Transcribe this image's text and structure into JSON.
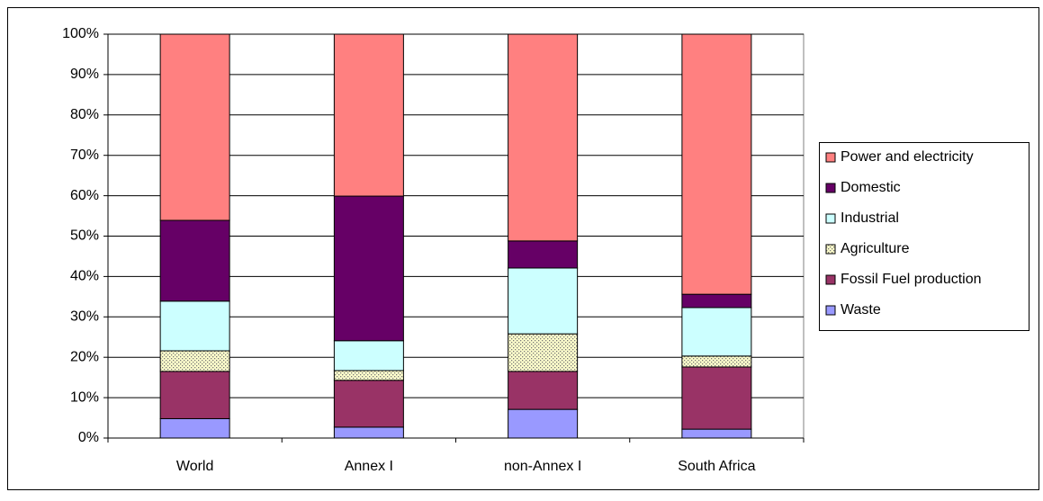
{
  "chart_data": {
    "type": "stacked_bar",
    "categories": [
      "World",
      "Annex I",
      "non-Annex I",
      "South Africa"
    ],
    "series": [
      {
        "name": "Waste",
        "color": "#9999ff",
        "values": [
          4.8,
          2.7,
          7.1,
          2.2
        ]
      },
      {
        "name": "Fossil Fuel production",
        "color": "#993366",
        "values": [
          11.7,
          11.6,
          9.4,
          15.4
        ]
      },
      {
        "name": "Agriculture",
        "color": "#ffffcc",
        "values": [
          5.1,
          2.4,
          9.3,
          2.7
        ]
      },
      {
        "name": "Industrial",
        "color": "#ccffff",
        "values": [
          12.3,
          7.4,
          16.3,
          12.0
        ]
      },
      {
        "name": "Domestic",
        "color": "#660066",
        "values": [
          20.0,
          35.8,
          6.7,
          3.3
        ]
      },
      {
        "name": "Power and electricity",
        "color": "#ff8080",
        "values": [
          46.1,
          40.1,
          51.2,
          64.4
        ]
      }
    ],
    "ylim": [
      0,
      100
    ],
    "yticks": [
      {
        "value": 0,
        "label": "0%"
      },
      {
        "value": 10,
        "label": "10%"
      },
      {
        "value": 20,
        "label": "20%"
      },
      {
        "value": 30,
        "label": "30%"
      },
      {
        "value": 40,
        "label": "40%"
      },
      {
        "value": 50,
        "label": "50%"
      },
      {
        "value": 60,
        "label": "60%"
      },
      {
        "value": 70,
        "label": "70%"
      },
      {
        "value": 80,
        "label": "80%"
      },
      {
        "value": 90,
        "label": "90%"
      },
      {
        "value": 100,
        "label": "100%"
      }
    ],
    "grid": true,
    "legend": "right"
  }
}
